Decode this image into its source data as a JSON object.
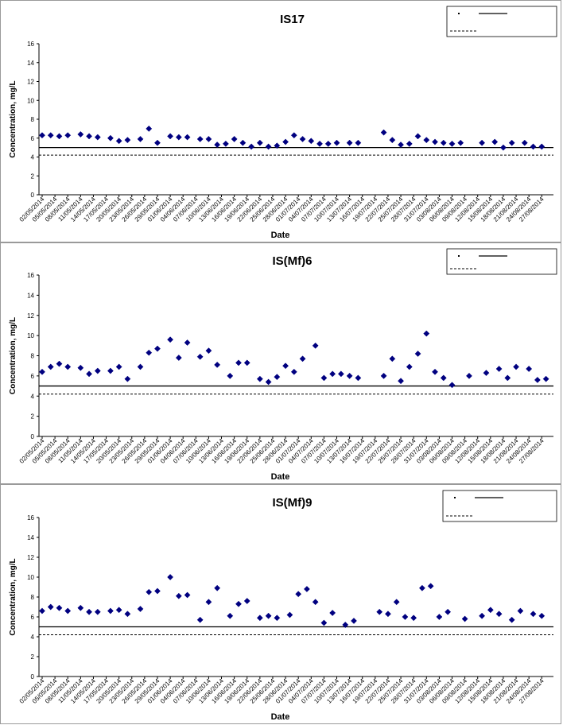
{
  "chart_data": [
    {
      "type": "scatter",
      "title": "IS17",
      "xlabel": "Date",
      "ylabel": "Concentration, mg/L",
      "ylim": [
        0,
        16
      ],
      "yticks": [
        "0",
        "2",
        "4",
        "6",
        "8",
        "10",
        "12",
        "14",
        "16"
      ],
      "xticks": [
        "02/05/2014",
        "05/05/2014",
        "08/05/2014",
        "11/05/2014",
        "14/05/2014",
        "17/05/2014",
        "20/05/2014",
        "23/05/2014",
        "26/05/2014",
        "29/05/2014",
        "01/06/2014",
        "04/06/2014",
        "07/06/2014",
        "10/06/2014",
        "13/06/2014",
        "16/06/2014",
        "19/06/2014",
        "22/06/2014",
        "25/06/2014",
        "28/06/2014",
        "01/07/2014",
        "04/07/2014",
        "07/07/2014",
        "10/07/2014",
        "13/07/2014",
        "16/07/2014",
        "19/07/2014",
        "22/07/2014",
        "25/07/2014",
        "28/07/2014",
        "31/07/2014",
        "03/08/2014",
        "06/08/2014",
        "09/08/2014",
        "12/08/2014",
        "15/08/2014",
        "18/08/2014",
        "21/08/2014",
        "24/08/2014",
        "27/08/2014"
      ],
      "series": [
        {
          "color": "#000080",
          "x": [
            "02/05/2014",
            "04/05/2014",
            "06/05/2014",
            "08/05/2014",
            "11/05/2014",
            "13/05/2014",
            "15/05/2014",
            "18/05/2014",
            "20/05/2014",
            "22/05/2014",
            "25/05/2014",
            "27/05/2014",
            "29/05/2014",
            "01/06/2014",
            "03/06/2014",
            "05/06/2014",
            "08/06/2014",
            "10/06/2014",
            "12/06/2014",
            "14/06/2014",
            "16/06/2014",
            "18/06/2014",
            "20/06/2014",
            "22/06/2014",
            "24/06/2014",
            "26/06/2014",
            "28/06/2014",
            "30/06/2014",
            "02/07/2014",
            "04/07/2014",
            "06/07/2014",
            "08/07/2014",
            "10/07/2014",
            "13/07/2014",
            "15/07/2014",
            "21/07/2014",
            "23/07/2014",
            "25/07/2014",
            "27/07/2014",
            "29/07/2014",
            "31/07/2014",
            "02/08/2014",
            "04/08/2014",
            "06/08/2014",
            "08/08/2014",
            "13/08/2014",
            "16/08/2014",
            "18/08/2014",
            "20/08/2014",
            "23/08/2014",
            "25/08/2014",
            "27/08/2014"
          ],
          "y": [
            6.3,
            6.3,
            6.2,
            6.3,
            6.4,
            6.2,
            6.1,
            6.0,
            5.7,
            5.8,
            5.9,
            7.0,
            5.5,
            6.2,
            6.1,
            6.1,
            5.9,
            5.9,
            5.3,
            5.4,
            5.9,
            5.5,
            5.1,
            5.5,
            5.1,
            5.2,
            5.6,
            6.3,
            5.9,
            5.7,
            5.4,
            5.4,
            5.5,
            5.5,
            5.5,
            6.6,
            5.8,
            5.3,
            5.4,
            6.2,
            5.8,
            5.6,
            5.5,
            5.4,
            5.5,
            5.5,
            5.6,
            5.0,
            5.5,
            5.5,
            5.1,
            5.1
          ]
        }
      ],
      "reference_lines": [
        {
          "style": "solid",
          "y": 5.0
        },
        {
          "style": "dashed",
          "y": 4.2
        }
      ],
      "legend_placement": "top-right"
    },
    {
      "type": "scatter",
      "title": "IS(Mf)6",
      "xlabel": "Date",
      "ylabel": "Concentration, mg/L",
      "ylim": [
        0,
        16
      ],
      "yticks": [
        "0",
        "2",
        "4",
        "6",
        "8",
        "10",
        "12",
        "14",
        "16"
      ],
      "xticks": [
        "02/05/2014",
        "05/05/2014",
        "08/05/2014",
        "11/05/2014",
        "14/05/2014",
        "17/05/2014",
        "20/05/2014",
        "23/05/2014",
        "26/05/2014",
        "29/05/2014",
        "01/06/2014",
        "04/06/2014",
        "07/06/2014",
        "10/06/2014",
        "13/06/2014",
        "16/06/2014",
        "19/06/2014",
        "22/06/2014",
        "25/06/2014",
        "28/06/2014",
        "01/07/2014",
        "04/07/2014",
        "07/07/2014",
        "10/07/2014",
        "13/07/2014",
        "16/07/2014",
        "19/07/2014",
        "22/07/2014",
        "25/07/2014",
        "28/07/2014",
        "31/07/2014",
        "03/08/2014",
        "06/08/2014",
        "09/08/2014",
        "12/08/2014",
        "15/08/2014",
        "18/08/2014",
        "21/08/2014",
        "24/08/2014",
        "27/08/2014"
      ],
      "series": [
        {
          "color": "#000080",
          "x": [
            "02/05/2014",
            "04/05/2014",
            "06/05/2014",
            "08/05/2014",
            "11/05/2014",
            "13/05/2014",
            "15/05/2014",
            "18/05/2014",
            "20/05/2014",
            "22/05/2014",
            "25/05/2014",
            "27/05/2014",
            "29/05/2014",
            "01/06/2014",
            "03/06/2014",
            "05/06/2014",
            "08/06/2014",
            "10/06/2014",
            "12/06/2014",
            "15/06/2014",
            "17/06/2014",
            "19/06/2014",
            "22/06/2014",
            "24/06/2014",
            "26/06/2014",
            "28/06/2014",
            "30/06/2014",
            "02/07/2014",
            "05/07/2014",
            "07/07/2014",
            "09/07/2014",
            "11/07/2014",
            "13/07/2014",
            "15/07/2014",
            "21/07/2014",
            "23/07/2014",
            "25/07/2014",
            "27/07/2014",
            "29/07/2014",
            "31/07/2014",
            "02/08/2014",
            "04/08/2014",
            "06/08/2014",
            "10/08/2014",
            "14/08/2014",
            "17/08/2014",
            "19/08/2014",
            "21/08/2014",
            "24/08/2014",
            "26/08/2014",
            "28/08/2014"
          ],
          "y": [
            6.4,
            6.9,
            7.2,
            6.9,
            6.8,
            6.2,
            6.5,
            6.5,
            6.9,
            5.7,
            6.9,
            8.3,
            8.7,
            9.6,
            7.8,
            9.3,
            7.9,
            8.5,
            7.1,
            6.0,
            7.3,
            7.3,
            5.7,
            5.4,
            5.9,
            7.0,
            6.4,
            7.7,
            9.0,
            5.8,
            6.2,
            6.2,
            6.0,
            5.8,
            6.0,
            7.7,
            5.5,
            6.9,
            8.2,
            10.2,
            6.4,
            5.8,
            5.1,
            6.0,
            6.3,
            6.7,
            5.8,
            6.9,
            6.7,
            5.6,
            5.7
          ]
        }
      ],
      "reference_lines": [
        {
          "style": "solid",
          "y": 5.0
        },
        {
          "style": "dashed",
          "y": 4.2
        }
      ],
      "legend_placement": "top-right"
    },
    {
      "type": "scatter",
      "title": "IS(Mf)9",
      "xlabel": "Date",
      "ylabel": "Concentration, mg/L",
      "ylim": [
        0,
        16
      ],
      "yticks": [
        "0",
        "2",
        "4",
        "6",
        "8",
        "10",
        "12",
        "14",
        "16"
      ],
      "xticks": [
        "02/05/2014",
        "05/05/2014",
        "08/05/2014",
        "11/05/2014",
        "14/05/2014",
        "17/05/2014",
        "20/05/2014",
        "23/05/2014",
        "26/05/2014",
        "29/05/2014",
        "01/06/2014",
        "04/06/2014",
        "07/06/2014",
        "10/06/2014",
        "13/06/2014",
        "16/06/2014",
        "19/06/2014",
        "22/06/2014",
        "25/06/2014",
        "28/06/2014",
        "01/07/2014",
        "04/07/2014",
        "07/07/2014",
        "10/07/2014",
        "13/07/2014",
        "16/07/2014",
        "19/07/2014",
        "22/07/2014",
        "25/07/2014",
        "28/07/2014",
        "31/07/2014",
        "03/08/2014",
        "06/08/2014",
        "09/08/2014",
        "12/08/2014",
        "15/08/2014",
        "18/08/2014",
        "21/08/2014",
        "24/08/2014",
        "27/08/2014"
      ],
      "series": [
        {
          "color": "#000080",
          "x": [
            "02/05/2014",
            "04/05/2014",
            "06/05/2014",
            "08/05/2014",
            "11/05/2014",
            "13/05/2014",
            "15/05/2014",
            "18/05/2014",
            "20/05/2014",
            "22/05/2014",
            "25/05/2014",
            "27/05/2014",
            "29/05/2014",
            "01/06/2014",
            "03/06/2014",
            "05/06/2014",
            "08/06/2014",
            "10/06/2014",
            "12/06/2014",
            "15/06/2014",
            "17/06/2014",
            "19/06/2014",
            "22/06/2014",
            "24/06/2014",
            "26/06/2014",
            "29/06/2014",
            "01/07/2014",
            "03/07/2014",
            "05/07/2014",
            "07/07/2014",
            "09/07/2014",
            "12/07/2014",
            "14/07/2014",
            "20/07/2014",
            "22/07/2014",
            "24/07/2014",
            "26/07/2014",
            "28/07/2014",
            "30/07/2014",
            "01/08/2014",
            "03/08/2014",
            "05/08/2014",
            "09/08/2014",
            "13/08/2014",
            "15/08/2014",
            "17/08/2014",
            "20/08/2014",
            "22/08/2014",
            "25/08/2014",
            "27/08/2014"
          ],
          "y": [
            6.6,
            7.0,
            6.9,
            6.6,
            6.9,
            6.5,
            6.5,
            6.6,
            6.7,
            6.3,
            6.8,
            8.5,
            8.6,
            10.0,
            8.1,
            8.2,
            5.7,
            7.5,
            8.9,
            6.1,
            7.3,
            7.6,
            5.9,
            6.1,
            5.9,
            6.2,
            8.3,
            8.8,
            7.5,
            5.4,
            6.4,
            5.2,
            5.6,
            6.5,
            6.3,
            7.5,
            6.0,
            5.9,
            8.9,
            9.1,
            6.0,
            6.5,
            5.8,
            6.1,
            6.7,
            6.3,
            5.7,
            6.6,
            6.3,
            6.1
          ]
        }
      ],
      "reference_lines": [
        {
          "style": "solid",
          "y": 5.0
        },
        {
          "style": "dashed",
          "y": 4.2
        }
      ],
      "legend_placement": "top-right"
    }
  ]
}
